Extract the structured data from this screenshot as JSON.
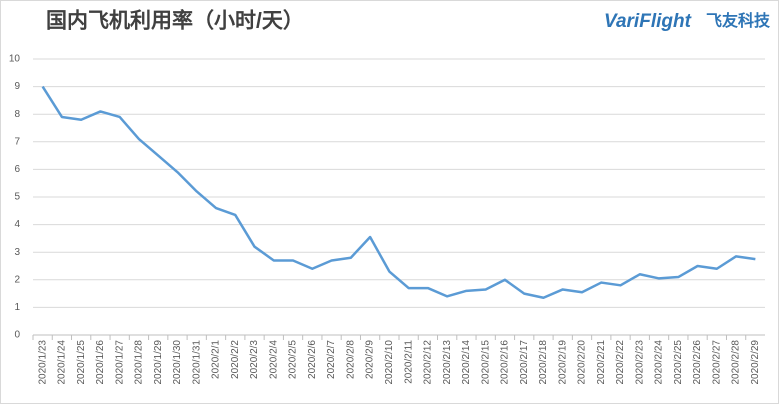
{
  "chart_data": {
    "type": "line",
    "title": "国内飞机利用率（小时/天）",
    "logo": "VariFlight",
    "logo_cn": "飞友科技",
    "categories": [
      "2020/1/23",
      "2020/1/24",
      "2020/1/25",
      "2020/1/26",
      "2020/1/27",
      "2020/1/28",
      "2020/1/29",
      "2020/1/30",
      "2020/1/31",
      "2020/2/1",
      "2020/2/2",
      "2020/2/3",
      "2020/2/4",
      "2020/2/5",
      "2020/2/6",
      "2020/2/7",
      "2020/2/8",
      "2020/2/9",
      "2020/2/10",
      "2020/2/11",
      "2020/2/12",
      "2020/2/13",
      "2020/2/14",
      "2020/2/15",
      "2020/2/16",
      "2020/2/17",
      "2020/2/18",
      "2020/2/19",
      "2020/2/20",
      "2020/2/21",
      "2020/2/22",
      "2020/2/23",
      "2020/2/24",
      "2020/2/25",
      "2020/2/26",
      "2020/2/27",
      "2020/2/28",
      "2020/2/29"
    ],
    "values": [
      9.0,
      7.9,
      7.8,
      8.1,
      7.9,
      7.1,
      6.5,
      5.9,
      5.2,
      4.6,
      4.35,
      3.2,
      2.7,
      2.7,
      2.4,
      2.7,
      2.8,
      3.55,
      2.3,
      1.7,
      1.7,
      1.4,
      1.6,
      1.65,
      2.0,
      1.5,
      1.35,
      1.65,
      1.55,
      1.9,
      1.8,
      2.2,
      2.05,
      2.1,
      2.5,
      2.4,
      2.85,
      2.75
    ],
    "color": "#5b9bd5",
    "ylim": [
      0,
      10
    ],
    "yticks": [
      0,
      1,
      2,
      3,
      4,
      5,
      6,
      7,
      8,
      9,
      10
    ],
    "grid": true
  }
}
